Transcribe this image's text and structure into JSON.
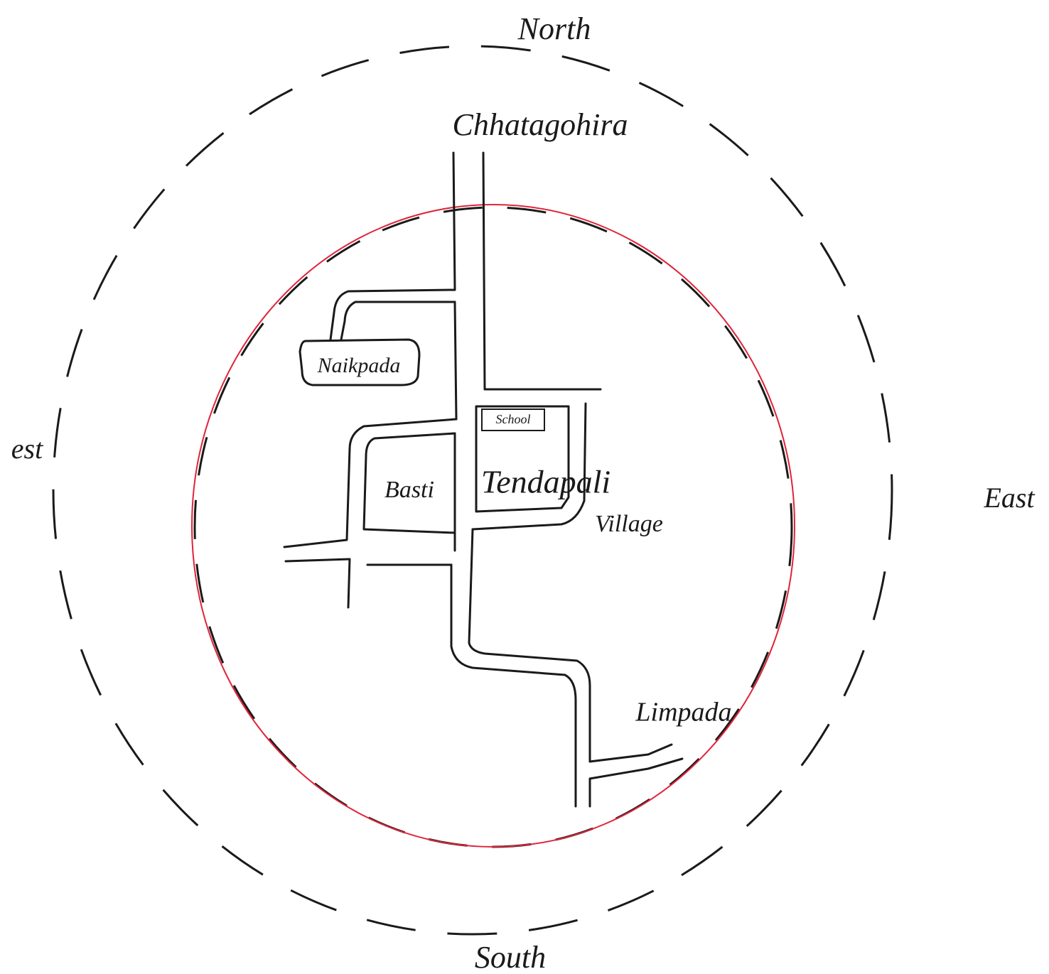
{
  "compass": {
    "north": "North",
    "south": "South",
    "east": "East",
    "west": "est"
  },
  "places": {
    "top": "Chhatagohira",
    "hamlet_1": "Naikpada",
    "school": "School",
    "hamlet_2": "Basti",
    "village_name": "Tendapali",
    "village_word": "Village",
    "hamlet_3": "Limpada"
  }
}
